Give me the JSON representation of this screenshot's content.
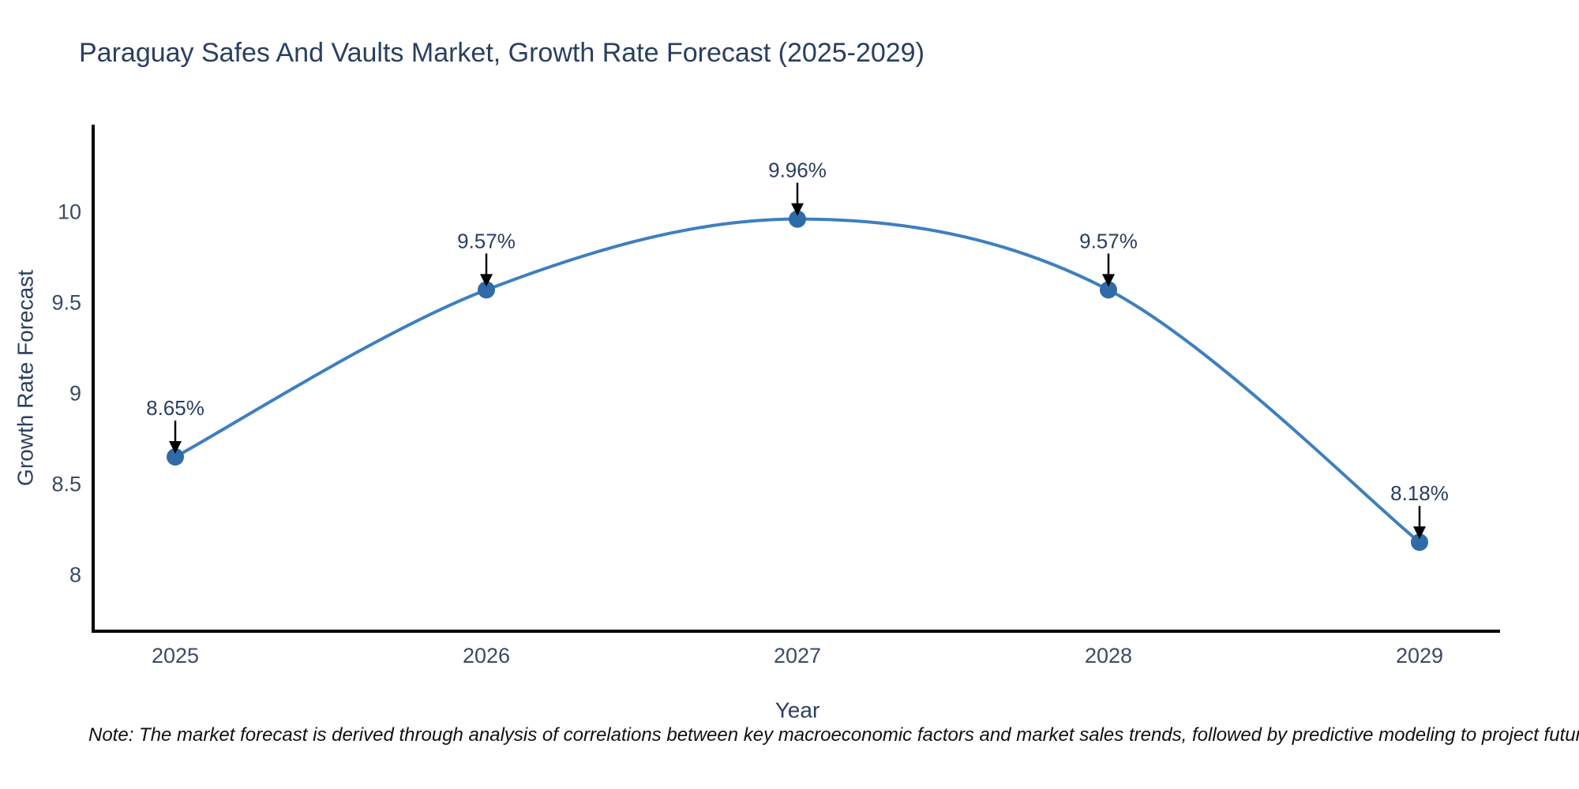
{
  "title": "Paraguay Safes And Vaults Market, Growth Rate Forecast (2025-2029)",
  "note": "Note: The market forecast is derived through analysis of correlations between key macroeconomic factors and market sales trends, followed by predictive modeling to project future sales",
  "chart_data": {
    "type": "line",
    "title": "Paraguay Safes And Vaults Market, Growth Rate Forecast (2025-2029)",
    "xlabel": "Year",
    "ylabel": "Growth Rate Forecast",
    "categories": [
      "2025",
      "2026",
      "2027",
      "2028",
      "2029"
    ],
    "values": [
      8.65,
      9.57,
      9.96,
      9.57,
      8.18
    ],
    "point_labels": [
      "8.65%",
      "9.57%",
      "9.96%",
      "9.57%",
      "8.18%"
    ],
    "yticks": [
      10,
      9.5,
      9,
      8.5,
      8
    ],
    "ytick_labels": [
      "10",
      "9.5",
      "9",
      "8.5",
      "8"
    ],
    "ylim": [
      7.69,
      10.48
    ],
    "line_shape": "spline",
    "grid": false,
    "legend_position": "none",
    "annotation_style": "label-with-down-arrow",
    "colors": {
      "line": "#3e7fbe",
      "marker": "#2f6ba8",
      "text": "#2a3f5f",
      "tick_text": "#3b4a63",
      "axis": "#000000",
      "arrow": "#000000",
      "background": "#ffffff"
    }
  }
}
